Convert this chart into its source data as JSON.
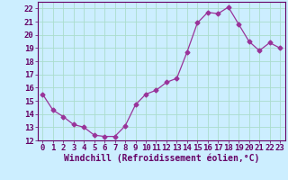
{
  "x": [
    0,
    1,
    2,
    3,
    4,
    5,
    6,
    7,
    8,
    9,
    10,
    11,
    12,
    13,
    14,
    15,
    16,
    17,
    18,
    19,
    20,
    21,
    22,
    23
  ],
  "y": [
    15.5,
    14.3,
    13.8,
    13.2,
    13.0,
    12.4,
    12.3,
    12.3,
    13.1,
    14.7,
    15.5,
    15.8,
    16.4,
    16.7,
    18.7,
    20.9,
    21.7,
    21.6,
    22.1,
    20.8,
    19.5,
    18.8,
    19.4,
    19.0
  ],
  "line_color": "#993399",
  "marker": "D",
  "marker_size": 2.5,
  "bg_color": "#cceeff",
  "grid_color": "#aaddcc",
  "xlabel": "Windchill (Refroidissement éolien,°C)",
  "ylim": [
    12,
    22.5
  ],
  "xlim": [
    -0.5,
    23.5
  ],
  "yticks": [
    12,
    13,
    14,
    15,
    16,
    17,
    18,
    19,
    20,
    21,
    22
  ],
  "xticks": [
    0,
    1,
    2,
    3,
    4,
    5,
    6,
    7,
    8,
    9,
    10,
    11,
    12,
    13,
    14,
    15,
    16,
    17,
    18,
    19,
    20,
    21,
    22,
    23
  ],
  "tick_label_color": "#660066",
  "xlabel_color": "#660066",
  "xlabel_fontsize": 7,
  "tick_fontsize": 6.5
}
